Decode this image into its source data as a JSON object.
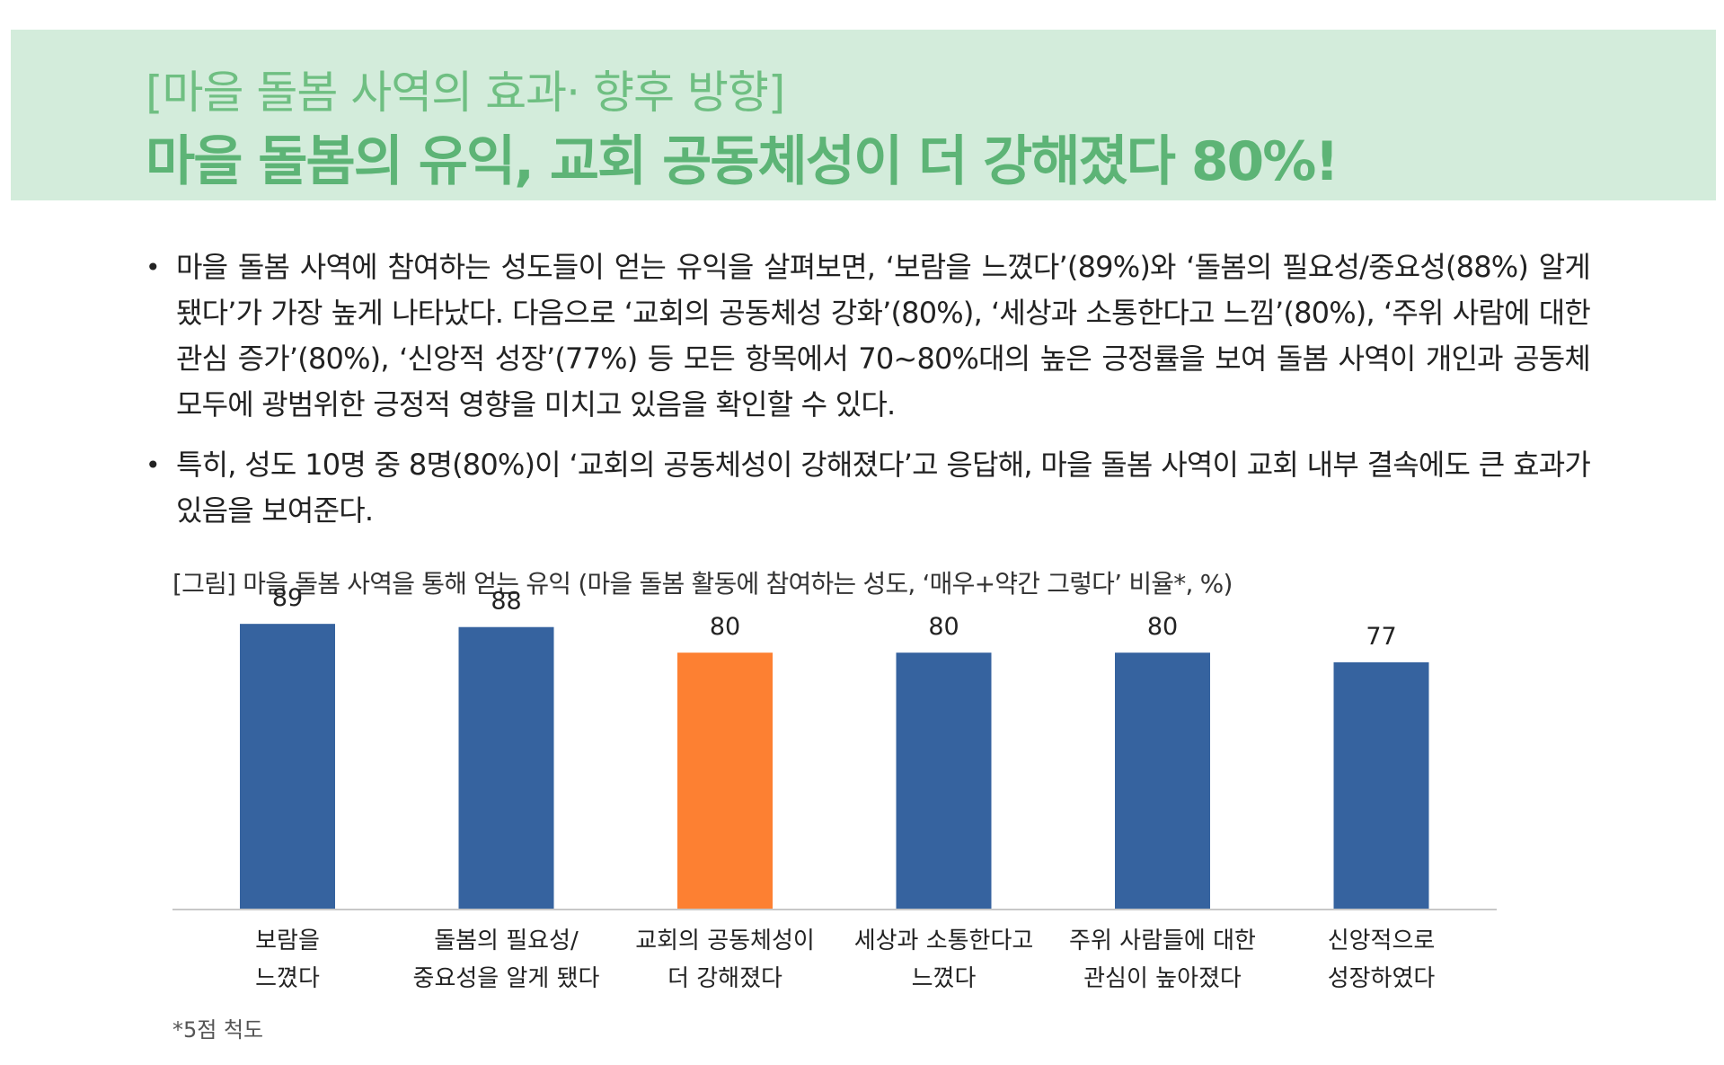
{
  "header": {
    "subtitle": "[마을 돌봄 사역의 효과· 향후 방향]",
    "title": "마을 돌봄의 유익, 교회 공동체성이 더 강해졌다 80%!"
  },
  "bullets": [
    "마을 돌봄 사역에 참여하는 성도들이 얻는 유익을 살펴보면, ‘보람을 느꼈다’(89%)와 ‘돌봄의 필요성/중요성(88%) 알게 됐다’가 가장 높게 나타났다. 다음으로 ‘교회의 공동체성 강화’(80%), ‘세상과 소통한다고 느낌’(80%), ‘주위 사람에 대한 관심 증가’(80%), ‘신앙적 성장’(77%) 등 모든 항목에서 70~80%대의 높은 긍정률을 보여 돌봄 사역이 개인과 공동체 모두에 광범위한 긍정적 영향을 미치고 있음을 확인할 수 있다.",
    "특히, 성도 10명 중 8명(80%)이 ‘교회의 공동체성이 강해졌다’고 응답해, 마을 돌봄 사역이 교회 내부 결속에도 큰 효과가 있음을 보여준다."
  ],
  "bullet_symbol": "•",
  "figure_caption": "[그림] 마을 돌봄 사역을 통해 얻는 유익 (마을 돌봄 활동에 참여하는 성도, ‘매우+약간 그렇다’ 비율*, %)",
  "footnote": "*5점 척도",
  "colors": {
    "bar_default": "#36639f",
    "bar_highlight": "#fd8032",
    "header_bg": "#d3ecdb",
    "header_text": "#5db476"
  },
  "chart_data": {
    "type": "bar",
    "categories": [
      [
        "보람을",
        "느꼈다"
      ],
      [
        "돌봄의 필요성/",
        "중요성을 알게 됐다"
      ],
      [
        "교회의 공동체성이",
        "더 강해졌다"
      ],
      [
        "세상과 소통한다고",
        "느꼈다"
      ],
      [
        "주위 사람들에 대한",
        "관심이 높아졌다"
      ],
      [
        "신앙적으로",
        "성장하였다"
      ]
    ],
    "values": [
      89,
      88,
      80,
      80,
      80,
      77
    ],
    "highlight_index": 2,
    "ylim": [
      0,
      100
    ],
    "grid": false,
    "legend": "none",
    "value_labels": true
  }
}
